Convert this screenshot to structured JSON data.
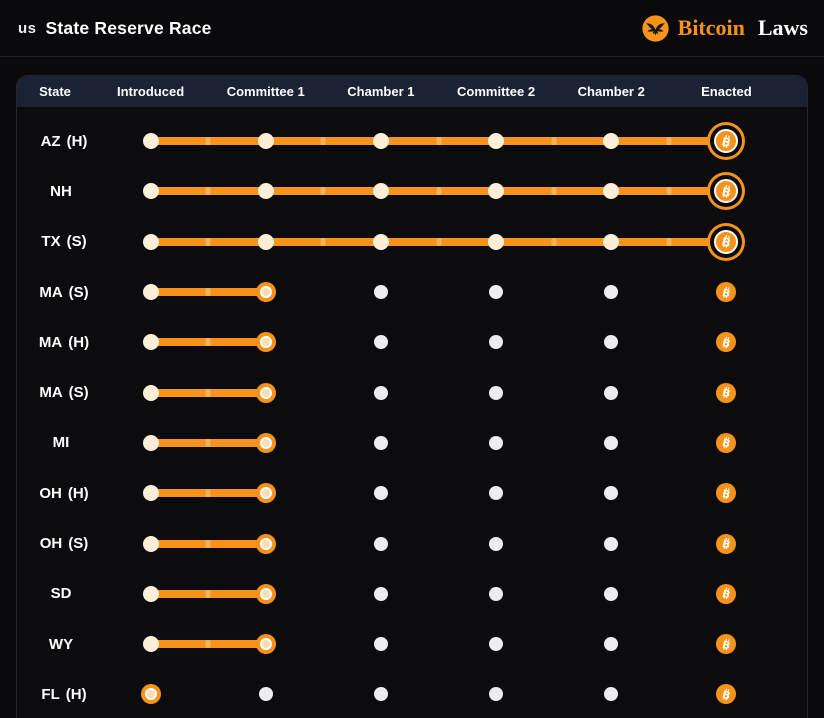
{
  "header": {
    "flag_text": "us",
    "title": "State Reserve Race",
    "brand": {
      "logo_icon": "eagle-icon",
      "word_primary": "Bitcoin",
      "word_secondary": "Laws"
    }
  },
  "table": {
    "columns": [
      "State",
      "Introduced",
      "Committee 1",
      "Chamber 1",
      "Committee 2",
      "Chamber 2",
      "Enacted"
    ],
    "stages": [
      "Introduced",
      "Committee 1",
      "Chamber 1",
      "Committee 2",
      "Chamber 2",
      "Enacted"
    ],
    "rows": [
      {
        "code": "AZ",
        "suffix": "(H)",
        "stage": "Enacted",
        "stage_index": 5
      },
      {
        "code": "NH",
        "suffix": "",
        "stage": "Enacted",
        "stage_index": 5
      },
      {
        "code": "TX",
        "suffix": "(S)",
        "stage": "Enacted",
        "stage_index": 5
      },
      {
        "code": "MA",
        "suffix": "(S)",
        "stage": "Committee 1",
        "stage_index": 1
      },
      {
        "code": "MA",
        "suffix": "(H)",
        "stage": "Committee 1",
        "stage_index": 1
      },
      {
        "code": "MA",
        "suffix": "(S)",
        "stage": "Committee 1",
        "stage_index": 1
      },
      {
        "code": "MI",
        "suffix": "",
        "stage": "Committee 1",
        "stage_index": 1
      },
      {
        "code": "OH",
        "suffix": "(H)",
        "stage": "Committee 1",
        "stage_index": 1
      },
      {
        "code": "OH",
        "suffix": "(S)",
        "stage": "Committee 1",
        "stage_index": 1
      },
      {
        "code": "SD",
        "suffix": "",
        "stage": "Committee 1",
        "stage_index": 1
      },
      {
        "code": "WY",
        "suffix": "",
        "stage": "Committee 1",
        "stage_index": 1
      },
      {
        "code": "FL",
        "suffix": "(H)",
        "stage": "Introduced",
        "stage_index": 0
      }
    ]
  },
  "colors": {
    "accent_orange": "#f7931a",
    "completed_dot": "#fdeed7",
    "pending_dot": "#ededef",
    "table_header_bg": "#1a2233",
    "page_bg": "#0a0a0c"
  }
}
